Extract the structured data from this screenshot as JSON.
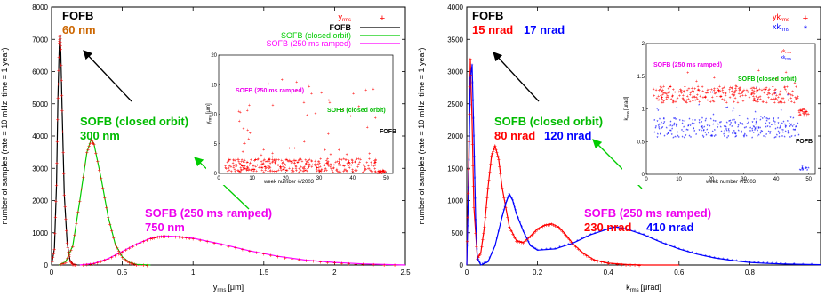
{
  "chart_data": [
    {
      "type": "line",
      "xlabel": "y",
      "xlabel_sub": "rms",
      "xlabel_unit": "[μm]",
      "ylabel": "number of samples (rate = 10 mHz, time = 1 year)",
      "xlim": [
        0,
        2.5
      ],
      "ylim": [
        0,
        8000
      ],
      "xticks": [
        "0",
        "0.5",
        "1",
        "1.5",
        "2",
        "2.5"
      ],
      "yticks": [
        "0",
        "1000",
        "2000",
        "3000",
        "4000",
        "5000",
        "6000",
        "7000",
        "8000"
      ],
      "legend": {
        "position": "top-right",
        "entries": [
          {
            "label_main": "y",
            "label_sub": "rms",
            "color": "#ff0000",
            "marker": "+"
          },
          {
            "label": "FOFB",
            "color": "#000000"
          },
          {
            "label": "SOFB (closed orbit)",
            "color": "#00cc00"
          },
          {
            "label": "SOFB (250 ms ramped)",
            "color": "#ff00ff"
          }
        ]
      },
      "annotations": [
        {
          "text": "FOFB",
          "color": "#000000"
        },
        {
          "text": "60 nm",
          "color": "#cc6600"
        },
        {
          "text": "SOFB (closed orbit)",
          "color": "#00bb00"
        },
        {
          "text": "300 nm",
          "color": "#00bb00"
        },
        {
          "text": "SOFB (250 ms ramped)",
          "color": "#ee00ee"
        },
        {
          "text": "750 nm",
          "color": "#ee00ee"
        }
      ],
      "series": [
        {
          "name": "FOFB",
          "color": "#000000",
          "x": [
            0,
            0.02,
            0.035,
            0.045,
            0.055,
            0.06,
            0.065,
            0.075,
            0.09,
            0.11,
            0.13,
            0.15,
            0.18
          ],
          "y": [
            0,
            500,
            2500,
            5200,
            6900,
            7150,
            6700,
            4800,
            2200,
            700,
            150,
            30,
            0
          ]
        },
        {
          "name": "SOFB (closed orbit)",
          "color": "#00cc00",
          "x": [
            0.05,
            0.1,
            0.15,
            0.2,
            0.25,
            0.28,
            0.3,
            0.35,
            0.4,
            0.45,
            0.5,
            0.55,
            0.6,
            0.7
          ],
          "y": [
            0,
            100,
            600,
            2000,
            3500,
            3900,
            3750,
            2700,
            1500,
            650,
            250,
            80,
            20,
            0
          ]
        },
        {
          "name": "SOFB (250 ms ramped)",
          "color": "#ff00ff",
          "x": [
            0.2,
            0.3,
            0.4,
            0.5,
            0.6,
            0.7,
            0.75,
            0.8,
            0.9,
            1.0,
            1.2,
            1.4,
            1.6,
            1.8,
            2.0,
            2.2,
            2.5
          ],
          "y": [
            0,
            50,
            200,
            420,
            650,
            830,
            880,
            900,
            880,
            830,
            650,
            440,
            270,
            150,
            80,
            35,
            0
          ]
        }
      ],
      "inset": {
        "xlabel": "week number #/2003",
        "ylabel": "y",
        "ylabel_sub": "rms",
        "ylabel_unit": "[μm]",
        "xlim": [
          0,
          52
        ],
        "ylim": [
          0,
          20
        ],
        "xticks": [
          "0",
          "10",
          "20",
          "30",
          "40",
          "50"
        ],
        "yticks": [
          "0",
          "5",
          "10",
          "15",
          "20"
        ],
        "annotations": [
          {
            "text": "SOFB (250 ms ramped)",
            "color": "#ee00ee"
          },
          {
            "text": "SOFB (closed orbit)",
            "color": "#00bb00"
          },
          {
            "text": "FOFB",
            "color": "#000000"
          }
        ]
      }
    },
    {
      "type": "line",
      "xlabel": "k",
      "xlabel_sub": "rms",
      "xlabel_unit": "[μrad]",
      "ylabel": "number of samples (rate = 10 mHz, time = 1 year)",
      "xlim": [
        0,
        1.0
      ],
      "ylim": [
        0,
        4000
      ],
      "xticks": [
        "0",
        "0.2",
        "0.4",
        "0.6",
        "0.8"
      ],
      "yticks": [
        "0",
        "500",
        "1000",
        "1500",
        "2000",
        "2500",
        "3000",
        "3500",
        "4000"
      ],
      "legend": {
        "position": "top-right",
        "entries": [
          {
            "label_main": "yk",
            "label_sub": "rms",
            "color": "#ff0000",
            "marker": "+"
          },
          {
            "label_main": "xk",
            "label_sub": "rms",
            "color": "#0000ff",
            "marker": "*"
          }
        ]
      },
      "annotations": [
        {
          "text": "FOFB",
          "color": "#000000"
        },
        {
          "text": "15 nrad",
          "color": "#ff0000"
        },
        {
          "text": "17 nrad",
          "color": "#0000ff"
        },
        {
          "text": "SOFB (closed orbit)",
          "color": "#00bb00"
        },
        {
          "text": "80 nrad",
          "color": "#ff0000"
        },
        {
          "text": "120 nrad",
          "color": "#0000ff"
        },
        {
          "text": "SOFB (250 ms ramped)",
          "color": "#ee00ee"
        },
        {
          "text": "230 nrad",
          "color": "#ff0000"
        },
        {
          "text": "410 nrad",
          "color": "#0000ff"
        }
      ],
      "series": [
        {
          "name": "yk",
          "color": "#ff0000",
          "x": [
            0,
            0.005,
            0.01,
            0.015,
            0.02,
            0.03,
            0.04,
            0.05,
            0.06,
            0.07,
            0.08,
            0.09,
            0.1,
            0.12,
            0.14,
            0.16,
            0.18,
            0.2,
            0.22,
            0.24,
            0.26,
            0.28,
            0.3,
            0.33,
            0.36,
            0.4,
            0.45,
            0.5,
            0.6
          ],
          "y": [
            0,
            1500,
            3200,
            2200,
            900,
            100,
            200,
            600,
            1200,
            1700,
            1850,
            1650,
            1200,
            600,
            380,
            350,
            450,
            560,
            620,
            640,
            590,
            470,
            330,
            180,
            80,
            30,
            10,
            0,
            0
          ]
        },
        {
          "name": "xk",
          "color": "#0000ff",
          "x": [
            0,
            0.005,
            0.01,
            0.015,
            0.02,
            0.025,
            0.03,
            0.04,
            0.06,
            0.08,
            0.1,
            0.11,
            0.12,
            0.13,
            0.14,
            0.16,
            0.18,
            0.2,
            0.25,
            0.3,
            0.35,
            0.4,
            0.42,
            0.45,
            0.5,
            0.55,
            0.6,
            0.65,
            0.7,
            0.75,
            0.8,
            0.85,
            0.9,
            1.0
          ],
          "y": [
            0,
            1200,
            2900,
            3100,
            2000,
            700,
            100,
            0,
            50,
            300,
            750,
            950,
            1100,
            1000,
            800,
            520,
            300,
            230,
            250,
            340,
            470,
            560,
            590,
            560,
            470,
            350,
            250,
            170,
            110,
            70,
            40,
            25,
            15,
            5
          ]
        }
      ],
      "inset": {
        "xlabel": "week number #/2003",
        "ylabel": "k",
        "ylabel_sub": "rms",
        "ylabel_unit": "[μrad]",
        "xlim": [
          0,
          52
        ],
        "ylim": [
          0,
          2
        ],
        "xticks": [
          "0",
          "10",
          "20",
          "30",
          "40",
          "50"
        ],
        "yticks": [
          "0",
          "0.5",
          "1",
          "1.5",
          "2"
        ],
        "legend": [
          {
            "label_main": "yk",
            "label_sub": "rms",
            "color": "#ff0000"
          },
          {
            "label_main": "xk",
            "label_sub": "rms",
            "color": "#0000ff"
          }
        ],
        "annotations": [
          {
            "text": "SOFB (250 ms ramped)",
            "color": "#ee00ee"
          },
          {
            "text": "SOFB (closed orbit)",
            "color": "#00bb00"
          },
          {
            "text": "FOFB",
            "color": "#000000"
          }
        ]
      }
    }
  ]
}
